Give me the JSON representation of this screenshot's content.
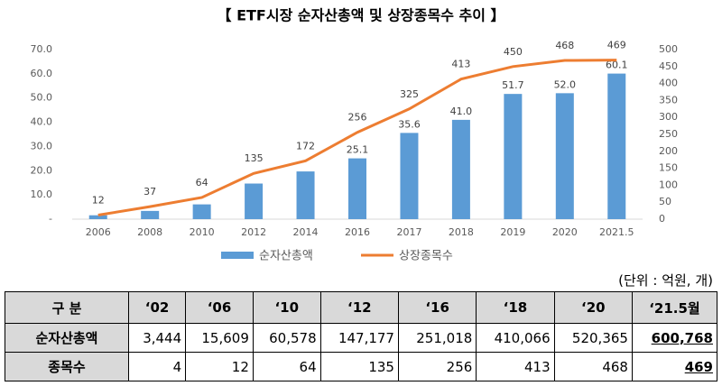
{
  "chart_data": {
    "type": "bar-line",
    "title": "【 ETF시장 순자산총액 및 상장종목수 추이 】",
    "categories": [
      "2006",
      "2008",
      "2010",
      "2012",
      "2014",
      "2016",
      "2017",
      "2018",
      "2019",
      "2020",
      "2021.5"
    ],
    "series": [
      {
        "name": "순자산총액",
        "type": "bar",
        "color": "#5b9bd5",
        "axis": "y",
        "values": [
          1.6,
          3.4,
          6.1,
          14.7,
          19.7,
          25.1,
          35.6,
          41.0,
          51.7,
          52.0,
          60.1
        ],
        "value_labels": [
          null,
          null,
          null,
          null,
          null,
          "25.1",
          "35.6",
          "41.0",
          "51.7",
          "52.0",
          "60.1"
        ]
      },
      {
        "name": "상장종목수",
        "type": "line",
        "color": "#ed7d31",
        "axis": "y2",
        "values": [
          12,
          37,
          64,
          135,
          172,
          256,
          325,
          413,
          450,
          468,
          469
        ]
      }
    ],
    "ylim": [
      0,
      70
    ],
    "yticks": [
      {
        "value": 0,
        "label": "-"
      },
      {
        "value": 10,
        "label": "10.0"
      },
      {
        "value": 20,
        "label": "20.0"
      },
      {
        "value": 30,
        "label": "30.0"
      },
      {
        "value": 40,
        "label": "40.0"
      },
      {
        "value": 50,
        "label": "50.0"
      },
      {
        "value": 60,
        "label": "60.0"
      },
      {
        "value": 70,
        "label": "70.0"
      }
    ],
    "y2lim": [
      0,
      500
    ],
    "y2ticks": [
      0,
      50,
      100,
      150,
      200,
      250,
      300,
      350,
      400,
      450,
      500
    ],
    "legend": "bottom"
  },
  "table": {
    "unit_note": "(단위 : 억원, 개)",
    "header": [
      "구 분",
      "‘02",
      "‘06",
      "‘10",
      "‘12",
      "‘16",
      "‘18",
      "‘20",
      "‘21.5월"
    ],
    "rows": [
      [
        "순자산총액",
        "3,444",
        "15,609",
        "60,578",
        "147,177",
        "251,018",
        "410,066",
        "520,365",
        "600,768"
      ],
      [
        "종목수",
        "4",
        "12",
        "64",
        "135",
        "256",
        "413",
        "468",
        "469"
      ]
    ]
  }
}
